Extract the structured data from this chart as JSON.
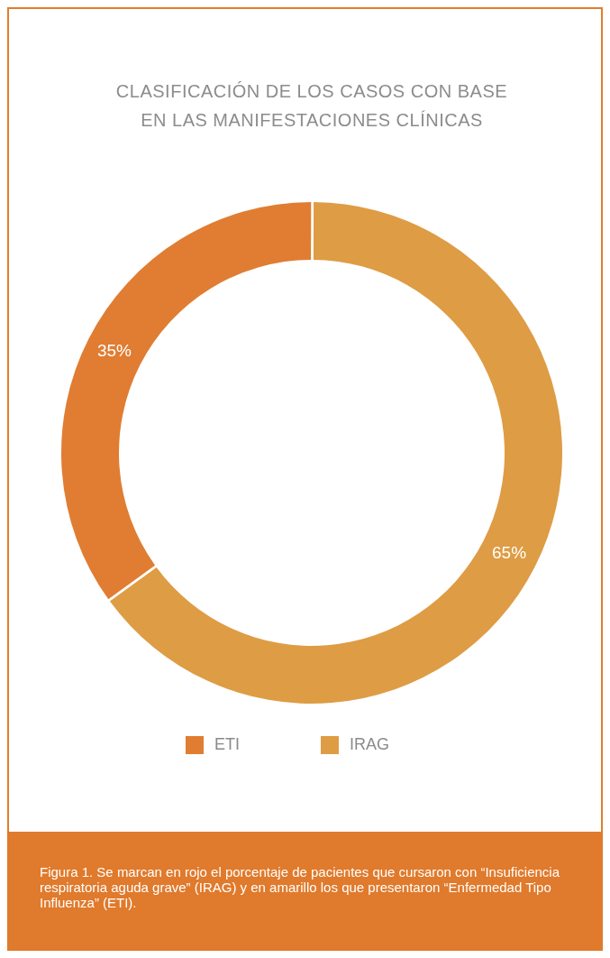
{
  "chart_data": {
    "type": "donut",
    "title": "CLASIFICACIÓN DE LOS CASOS CON BASE EN LAS MANIFESTACIONES CLÍNICAS",
    "categories": [
      "ETI",
      "IRAG"
    ],
    "values": [
      35,
      65
    ],
    "colors": [
      "#e07d32",
      "#de9c44"
    ],
    "value_labels": [
      "35%",
      "65%"
    ],
    "legend": "bottom",
    "annotations": [
      "Figura 1. Se marcan en rojo el porcentaje de pacientes que cursaron con “Insuficiencia respiratoria aguda grave” (IRAG) y en amarillo los que presentaron “Enfermedad Tipo Influenza” (ETI)."
    ]
  }
}
